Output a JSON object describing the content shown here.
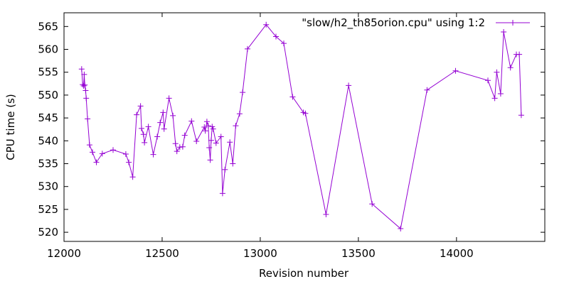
{
  "chart_data": {
    "type": "line",
    "title": "",
    "xlabel": "Revision number",
    "ylabel": "CPU time (s)",
    "xlim": [
      12000,
      14450
    ],
    "ylim": [
      518,
      568
    ],
    "x_ticks": [
      12000,
      12500,
      13000,
      13500,
      14000
    ],
    "y_ticks": [
      520,
      525,
      530,
      535,
      540,
      545,
      550,
      555,
      560,
      565
    ],
    "grid": false,
    "legend_position": "top-right",
    "marker": "plus",
    "color": "#9400d3",
    "series": [
      {
        "name": "\"slow/h2_th85orion.cpu\" using 1:2",
        "points": [
          [
            12090,
            555.7
          ],
          [
            12095,
            552.3
          ],
          [
            12100,
            552.0
          ],
          [
            12103,
            554.5
          ],
          [
            12106,
            552.2
          ],
          [
            12110,
            551.0
          ],
          [
            12113,
            549.3
          ],
          [
            12120,
            544.8
          ],
          [
            12130,
            539.1
          ],
          [
            12145,
            537.5
          ],
          [
            12165,
            535.3
          ],
          [
            12195,
            537.2
          ],
          [
            12250,
            538.0
          ],
          [
            12315,
            537.1
          ],
          [
            12330,
            535.3
          ],
          [
            12350,
            532.1
          ],
          [
            12370,
            545.7
          ],
          [
            12390,
            547.6
          ],
          [
            12395,
            542.7
          ],
          [
            12405,
            541.4
          ],
          [
            12410,
            539.6
          ],
          [
            12430,
            543.1
          ],
          [
            12455,
            537.0
          ],
          [
            12475,
            540.9
          ],
          [
            12490,
            544.0
          ],
          [
            12505,
            546.2
          ],
          [
            12510,
            542.6
          ],
          [
            12535,
            549.3
          ],
          [
            12555,
            545.5
          ],
          [
            12568,
            539.4
          ],
          [
            12575,
            537.7
          ],
          [
            12590,
            538.6
          ],
          [
            12605,
            538.7
          ],
          [
            12615,
            541.2
          ],
          [
            12650,
            544.3
          ],
          [
            12675,
            539.9
          ],
          [
            12715,
            543.0
          ],
          [
            12720,
            542.2
          ],
          [
            12728,
            544.2
          ],
          [
            12735,
            543.3
          ],
          [
            12740,
            538.5
          ],
          [
            12745,
            535.8
          ],
          [
            12750,
            540.1
          ],
          [
            12755,
            543.1
          ],
          [
            12760,
            542.6
          ],
          [
            12775,
            539.5
          ],
          [
            12800,
            540.9
          ],
          [
            12808,
            528.5
          ],
          [
            12820,
            533.7
          ],
          [
            12845,
            539.7
          ],
          [
            12860,
            535.0
          ],
          [
            12875,
            543.3
          ],
          [
            12895,
            545.9
          ],
          [
            12910,
            550.6
          ],
          [
            12935,
            560.1
          ],
          [
            13030,
            565.4
          ],
          [
            13080,
            562.8
          ],
          [
            13120,
            561.3
          ],
          [
            13165,
            549.6
          ],
          [
            13220,
            546.2
          ],
          [
            13230,
            546.0
          ],
          [
            13335,
            523.9
          ],
          [
            13450,
            552.1
          ],
          [
            13570,
            526.2
          ],
          [
            13715,
            520.8
          ],
          [
            13850,
            551.1
          ],
          [
            13995,
            555.3
          ],
          [
            14160,
            553.2
          ],
          [
            14195,
            549.3
          ],
          [
            14205,
            555.0
          ],
          [
            14225,
            550.3
          ],
          [
            14240,
            563.8
          ],
          [
            14275,
            556.0
          ],
          [
            14305,
            558.9
          ],
          [
            14320,
            558.9
          ],
          [
            14330,
            545.6
          ]
        ]
      }
    ]
  }
}
